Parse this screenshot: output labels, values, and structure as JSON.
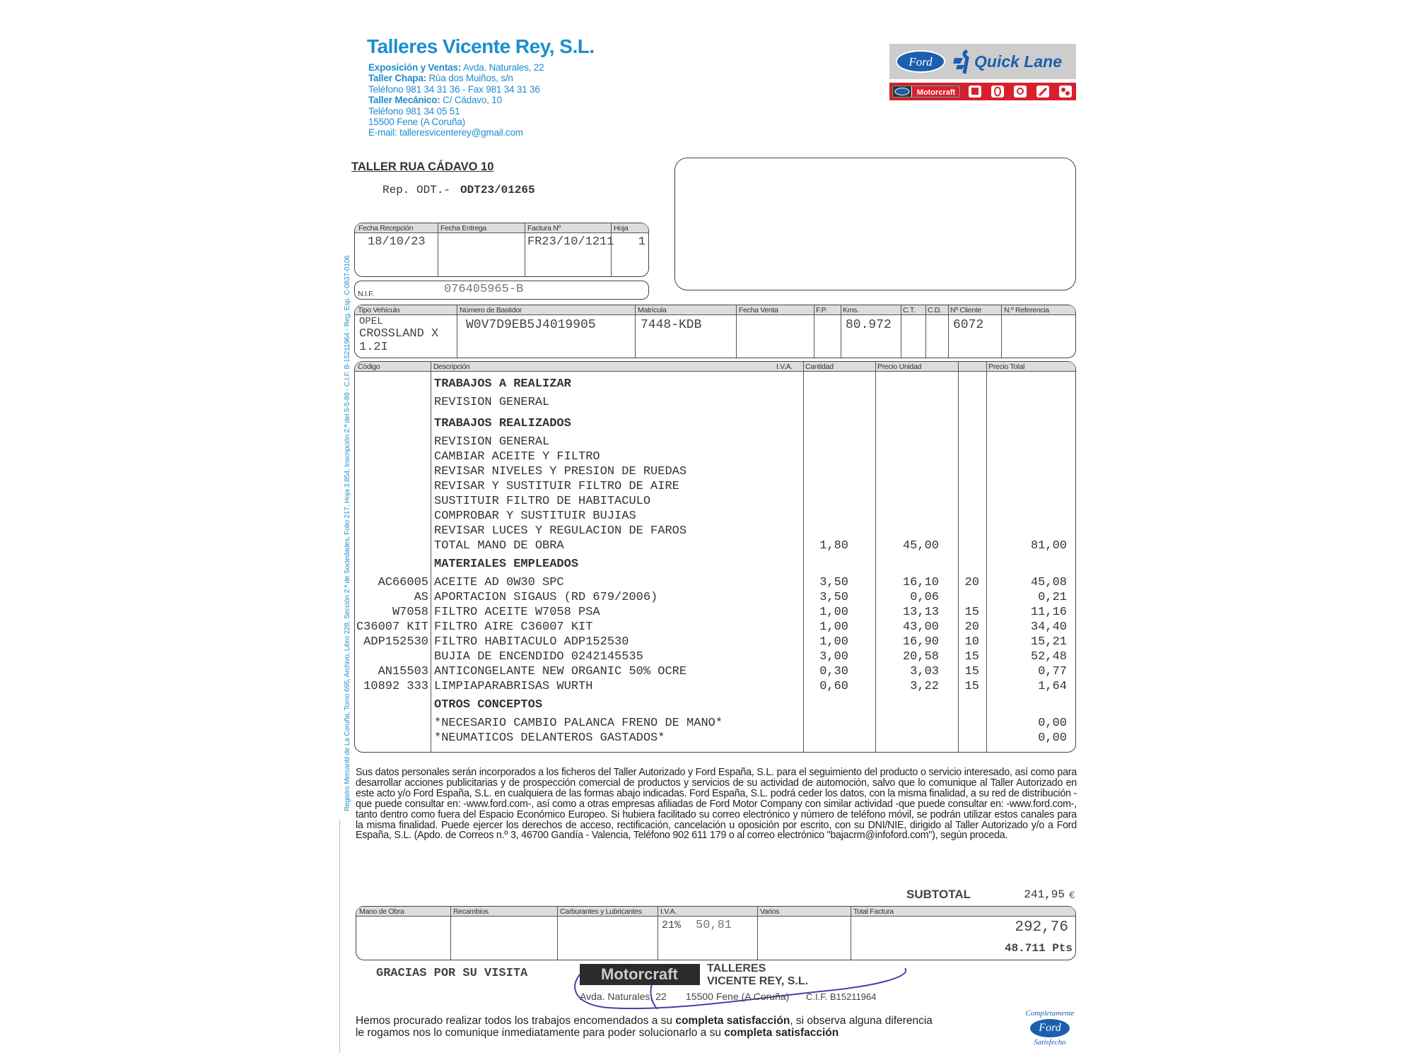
{
  "company": {
    "name": "Talleres Vicente Rey, S.L.",
    "lines": [
      {
        "label": "Exposición y Ventas:",
        "text": " Avda. Naturales, 22"
      },
      {
        "label": "Taller Chapa:",
        "text": " Rúa dos Muiños, s/n"
      },
      {
        "label": "",
        "text": "Teléfono 981 34 31 36 - Fax 981 34 31 36"
      },
      {
        "label": "Taller Mecánico:",
        "text": " C/ Cádavo, 10"
      },
      {
        "label": "",
        "text": "Teléfono 981 34 05 51"
      },
      {
        "label": "",
        "text": "15500 Fene (A Coruña)"
      },
      {
        "label": "",
        "text": "E-mail: talleresvicenterey@gmail.com"
      }
    ],
    "registry": "Registro Mercantil de La Coruña, Tomo 695, Archivo, Libro 228, Sección 2.ª de Sociedades, Folio 217, Hoja 3.854, Inscripción 2.ª del 5-5-89 - C.I.F. B-15211964 - Reg. Esp. C-0837-0106"
  },
  "logo": {
    "ford": "Ford",
    "quicklane": "Quick Lane",
    "motorcraft": "Motorcraft",
    "colors": {
      "blue": "#1b5fae",
      "red": "#d8202c",
      "gray": "#c8c8c8"
    }
  },
  "workshop": "TALLER RUA CÁDAVO 10",
  "rep_label": "Rep. ODT.-",
  "rep_value": "ODT23/01265",
  "dates": {
    "labels": [
      "Fecha Recepción",
      "Fecha Entrega",
      "Factura Nº",
      "Hoja"
    ],
    "values": [
      "18/10/23",
      "",
      "FR23/10/1211",
      "1"
    ]
  },
  "nif": {
    "label": "N.I.F.",
    "value": "076405965-B"
  },
  "vehicle": {
    "labels": [
      "Tipo Vehículo",
      "Número de Bastidor",
      "Matrícula",
      "Fecha Venta",
      "F.P.",
      "Kms.",
      "C.T.",
      "C.D.",
      "Nº Cliente",
      "N.º Referencia"
    ],
    "brand": "OPEL",
    "type": "CROSSLAND X",
    "type2": "1.2I",
    "vin": "W0V7D9EB5J4019905",
    "plate": "7448-KDB",
    "kms": "80.972",
    "client": "6072"
  },
  "items_header": [
    "Código",
    "Descripción",
    "I.V.A.",
    "Cantidad",
    "Precio Unidad",
    "",
    "Precio Total"
  ],
  "items": [
    {
      "heading": true,
      "desc": "TRABAJOS A REALIZAR"
    },
    {
      "desc": "REVISION GENERAL"
    },
    {
      "heading": true,
      "desc": "TRABAJOS REALIZADOS"
    },
    {
      "desc": "REVISION GENERAL"
    },
    {
      "desc": "CAMBIAR ACEITE Y FILTRO"
    },
    {
      "desc": "REVISAR NIVELES Y PRESION DE RUEDAS"
    },
    {
      "desc": "REVISAR Y SUSTITUIR FILTRO DE AIRE"
    },
    {
      "desc": "SUSTITUIR FILTRO DE HABITACULO"
    },
    {
      "desc": "COMPROBAR Y SUSTITUIR BUJIAS"
    },
    {
      "desc": "REVISAR LUCES Y REGULACION DE FAROS"
    },
    {
      "desc": "TOTAL MANO DE OBRA",
      "qty": "1,80",
      "price": "45,00",
      "total": "81,00"
    },
    {
      "heading": true,
      "desc": "MATERIALES EMPLEADOS"
    },
    {
      "code": "AC66005",
      "desc": "ACEITE AD 0W30 SPC",
      "qty": "3,50",
      "price": "16,10",
      "dto": "20",
      "total": "45,08"
    },
    {
      "code": "AS",
      "desc": "APORTACION SIGAUS (RD 679/2006)",
      "qty": "3,50",
      "price": "0,06",
      "total": "0,21"
    },
    {
      "code": "W7058",
      "desc": "FILTRO ACEITE W7058 PSA",
      "qty": "1,00",
      "price": "13,13",
      "dto": "15",
      "total": "11,16"
    },
    {
      "code": "C36007 KIT",
      "desc": "FILTRO AIRE C36007 KIT",
      "qty": "1,00",
      "price": "43,00",
      "dto": "20",
      "total": "34,40"
    },
    {
      "code": "ADP152530",
      "desc": "FILTRO HABITACULO ADP152530",
      "qty": "1,00",
      "price": "16,90",
      "dto": "10",
      "total": "15,21"
    },
    {
      "code": "",
      "desc": "BUJIA DE ENCENDIDO 0242145535",
      "qty": "3,00",
      "price": "20,58",
      "dto": "15",
      "total": "52,48"
    },
    {
      "code": "AN15503",
      "desc": "ANTICONGELANTE NEW ORGANIC 50% OCRE",
      "qty": "0,30",
      "price": "3,03",
      "dto": "15",
      "total": "0,77"
    },
    {
      "code": "10892 333",
      "desc": "LIMPIAPARABRISAS WURTH",
      "qty": "0,60",
      "price": "3,22",
      "dto": "15",
      "total": "1,64"
    },
    {
      "heading": true,
      "desc": "OTROS CONCEPTOS"
    },
    {
      "desc": "*NECESARIO CAMBIO PALANCA FRENO DE MANO*",
      "total": "0,00"
    },
    {
      "desc": "*NEUMATICOS DELANTEROS GASTADOS*",
      "total": "0,00"
    }
  ],
  "privacy": "Sus datos personales serán incorporados a los ficheros del Taller Autorizado y Ford España, S.L. para el seguimiento del producto o servicio interesado, así como para desarrollar acciones publicitarias y de prospección comercial de productos y servicios de su actividad de automoción, salvo que lo comunique al Taller Autorizado en este acto y/o Ford España, S.L. en cualquiera de las formas abajo indicadas. Ford España, S.L. podrá ceder los datos, con la misma finalidad, a su red de distribución -que puede consultar en: -www.ford.com-, así como a otras empresas afiliadas de Ford Motor Company con similar actividad -que puede consultar en: -www.ford.com-, tanto dentro como fuera del Espacio Económico Europeo. Si hubiera facilitado su correo electrónico y número de teléfono móvil, se podrán utilizar estos canales para la misma finalidad. Puede ejercer los derechos de acceso, rectificación, cancelación u oposición por escrito, con su DNI/NIE, dirigido al Taller Autorizado y/o a Ford España, S.L. (Apdo. de Correos n.º 3, 46700 Gandía - Valencia, Teléfono 902 611 179 o al correo electrónico \"bajacrm@infoford.com\"), según proceda.",
  "subtotal": {
    "label": "SUBTOTAL",
    "value": "241,95",
    "currency": "€"
  },
  "totals": {
    "labels": [
      "Mano de Obra",
      "Recambios",
      "Carburantes y Lubricantes",
      "I.V.A.",
      "Varios",
      "Total Factura"
    ],
    "iva_rate": "21%",
    "iva_value": "50,81",
    "total": "292,76",
    "total_pts": "48.711 Pts"
  },
  "stamp": {
    "brand": "Motorcraft",
    "line1": "TALLERES",
    "line2": "VICENTE REY, S.L.",
    "line3": "Avda. Naturales, 22",
    "line4": "15500 Fene (A Coruña)",
    "line5": "C.I.F. B15211964"
  },
  "thanks": "GRACIAS POR SU VISITA",
  "final": {
    "p1": "Hemos procurado realizar todos los trabajos encomendados a su ",
    "b1": "completa satisfacción",
    "p2": ", si observa alguna diferencia",
    "p3": "le rogamos nos lo comunique inmediatamente para poder solucionarlo a su ",
    "b2": "completa satisfacción"
  },
  "satisfecho": {
    "top": "Completamente",
    "ford": "Ford",
    "bottom": "Satisfecho"
  }
}
